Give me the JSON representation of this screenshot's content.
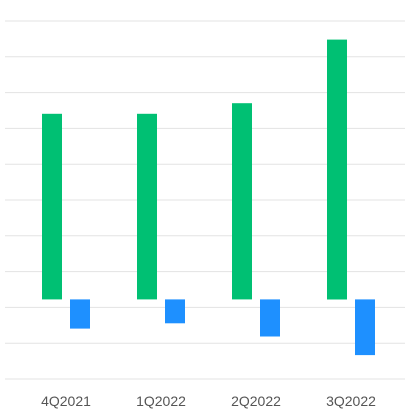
{
  "chart_data": {
    "type": "bar",
    "categories": [
      "4Q2021",
      "1Q2022",
      "2Q2022",
      "3Q2022"
    ],
    "series": [
      {
        "values": [
          7.0,
          7.0,
          7.4,
          9.8
        ],
        "color": "#00c073"
      },
      {
        "values": [
          -1.1,
          -0.9,
          -1.4,
          -2.1
        ],
        "color": "#1e90ff"
      }
    ],
    "ylim": [
      -3.0,
      10.5
    ],
    "grid": true,
    "legend": "none",
    "title": "",
    "xlabel": "",
    "ylabel": ""
  },
  "colors": {
    "grid": "#e3e3e3",
    "axis_text": "#555555",
    "background": "#ffffff"
  }
}
